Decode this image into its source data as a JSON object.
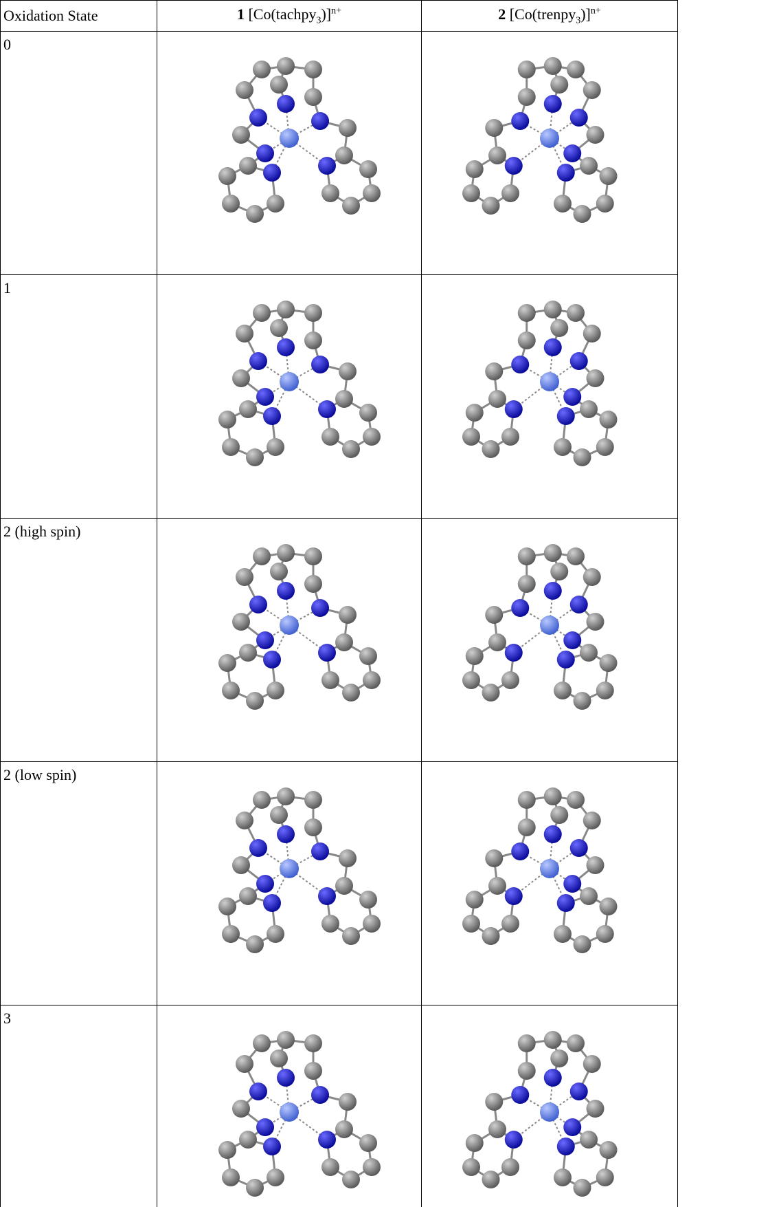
{
  "table": {
    "header": [
      {
        "text": "Oxidation State"
      },
      {
        "number": "1",
        "formula": "[Co(tachpy",
        "sub": "3",
        "close": ")]",
        "sup": "n+"
      },
      {
        "number": "2",
        "formula": "[Co(trenpy",
        "sub": "3",
        "close": ")]",
        "sup": "n+"
      }
    ],
    "rows": [
      "0",
      "1",
      "2 (high spin)",
      "2 (low spin)",
      "3"
    ]
  }
}
